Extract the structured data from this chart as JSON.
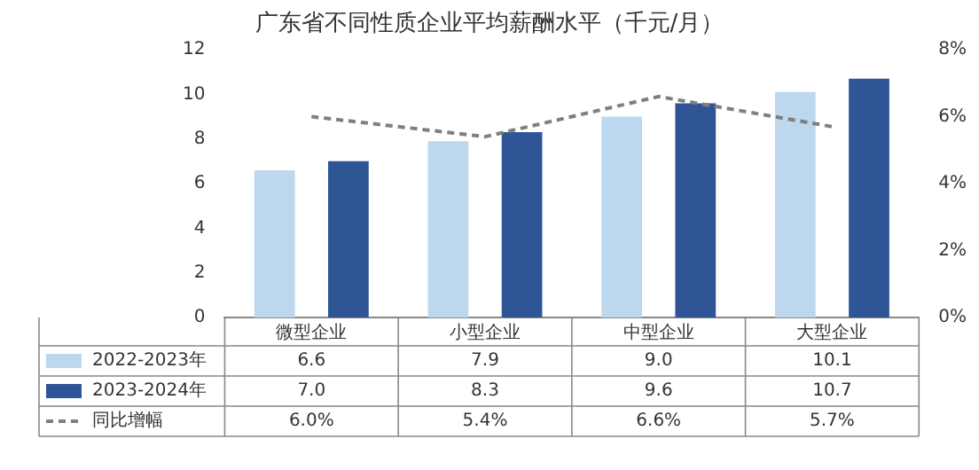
{
  "chart_data": {
    "type": "bar",
    "title": "广东省不同性质企业平均薪酬水平（千元/月）",
    "categories": [
      "微型企业",
      "小型企业",
      "中型企业",
      "大型企业"
    ],
    "series": [
      {
        "name": "2022-2023年",
        "color": "#bdd7ee",
        "values": [
          6.6,
          7.9,
          9.0,
          10.1
        ],
        "value_labels": [
          "6.6",
          "7.9",
          "9.0",
          "10.1"
        ]
      },
      {
        "name": "2023-2024年",
        "color": "#2f5597",
        "values": [
          7.0,
          8.3,
          9.6,
          10.7
        ],
        "value_labels": [
          "7.0",
          "8.3",
          "9.6",
          "10.7"
        ]
      },
      {
        "name": "同比增幅",
        "type": "line",
        "axis": "y2",
        "color": "#7f7f7f",
        "line_style": "dashed",
        "values": [
          6.0,
          5.4,
          6.6,
          5.7
        ],
        "value_labels": [
          "6.0%",
          "5.4%",
          "6.6%",
          "5.7%"
        ]
      }
    ],
    "ylim": [
      0,
      12
    ],
    "yticks": [
      0,
      2,
      4,
      6,
      8,
      10,
      12
    ],
    "y2lim": [
      0,
      8
    ],
    "y2ticks": [
      {
        "value": 0,
        "label": "0%"
      },
      {
        "value": 2,
        "label": "2%"
      },
      {
        "value": 4,
        "label": "4%"
      },
      {
        "value": 6,
        "label": "6%"
      },
      {
        "value": 8,
        "label": "8%"
      }
    ],
    "legend": "bottom",
    "grid": false,
    "marker": "none"
  }
}
